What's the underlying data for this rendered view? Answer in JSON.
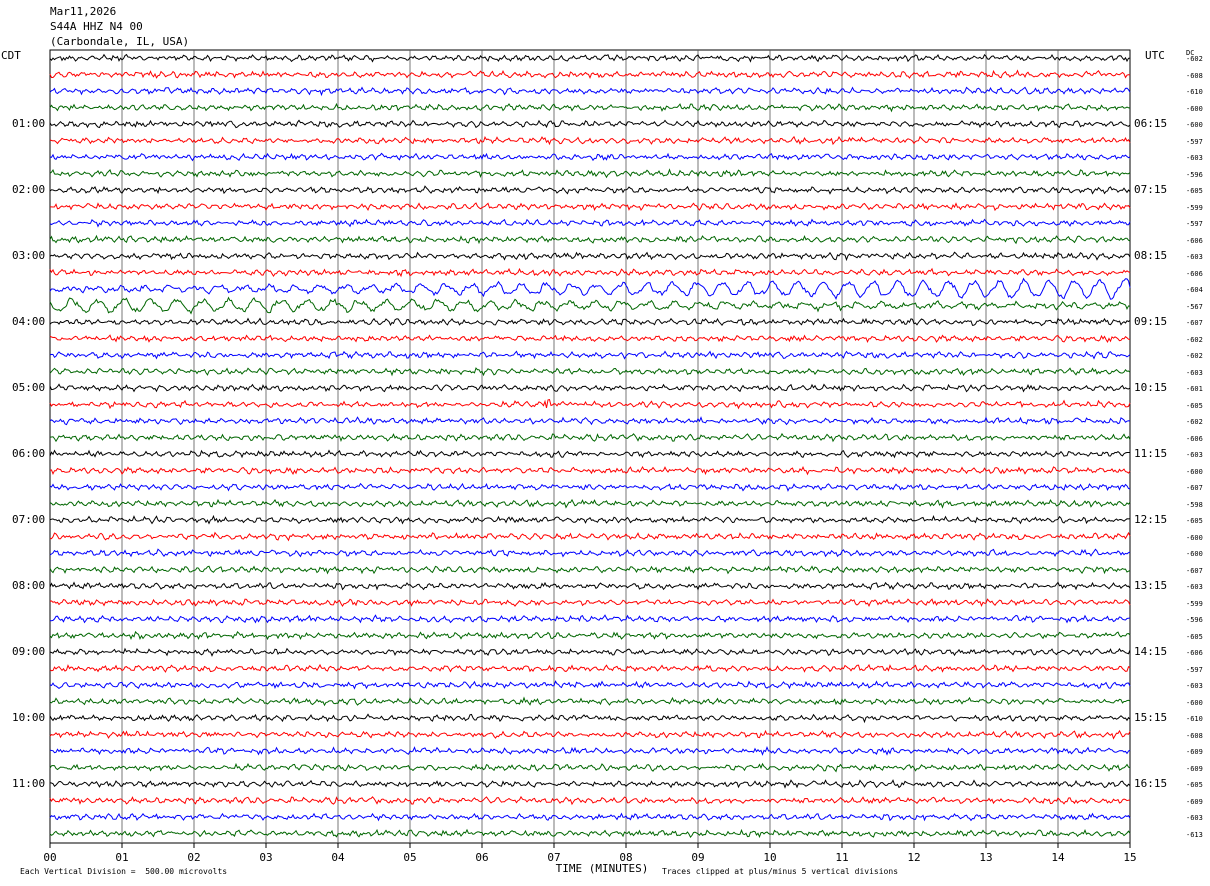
{
  "header": {
    "date": "Mar11,2026",
    "station": "S44A HHZ N4 00",
    "location": "(Carbondale, IL, USA)"
  },
  "left_zone": "CDT",
  "right_zone": "UTC",
  "dc_label": "DC",
  "chart_data": {
    "type": "line",
    "title": "",
    "xlabel": "TIME (MINUTES)",
    "x_ticks": [
      "00",
      "01",
      "02",
      "03",
      "04",
      "05",
      "06",
      "07",
      "08",
      "09",
      "10",
      "11",
      "12",
      "13",
      "14",
      "15"
    ],
    "xlim": [
      0,
      15
    ],
    "left_hour_labels": [
      "01:00",
      "02:00",
      "03:00",
      "04:00",
      "05:00",
      "06:00",
      "07:00",
      "08:00",
      "09:00",
      "10:00",
      "11:00"
    ],
    "right_hour_labels": [
      "06:15",
      "07:15",
      "08:15",
      "09:15",
      "10:15",
      "11:15",
      "12:15",
      "13:15",
      "14:15",
      "15:15",
      "16:15"
    ],
    "trace_colors": [
      "#000000",
      "#ff0000",
      "#0000ff",
      "#006600"
    ],
    "dc_offsets": [
      "-602",
      "-608",
      "-610",
      "-600",
      "-600",
      "-597",
      "-603",
      "-596",
      "-605",
      "-599",
      "-597",
      "-606",
      "-603",
      "-606",
      "-604",
      "-567",
      "-607",
      "-602",
      "-602",
      "-603",
      "-601",
      "-605",
      "-602",
      "-606",
      "-603",
      "-600",
      "-607",
      "-598",
      "-605",
      "-600",
      "-600",
      "-607",
      "-603",
      "-599",
      "-596",
      "-605",
      "-606",
      "-597",
      "-603",
      "-600",
      "-610",
      "-608",
      "-609",
      "-609",
      "-605",
      "-609",
      "-603",
      "-613"
    ],
    "events": [
      {
        "trace": 14,
        "description": "long-period oscillation growing toward end of row"
      },
      {
        "trace": 15,
        "description": "long-period oscillation at start of row"
      },
      {
        "trace": 21,
        "minute": 6.9,
        "description": "spike"
      }
    ],
    "grid": true,
    "trace_count": 48
  },
  "footer": {
    "left": "Each Vertical Division =  500.00 microvolts",
    "right": "Traces clipped at plus/minus 5 vertical divisions"
  }
}
